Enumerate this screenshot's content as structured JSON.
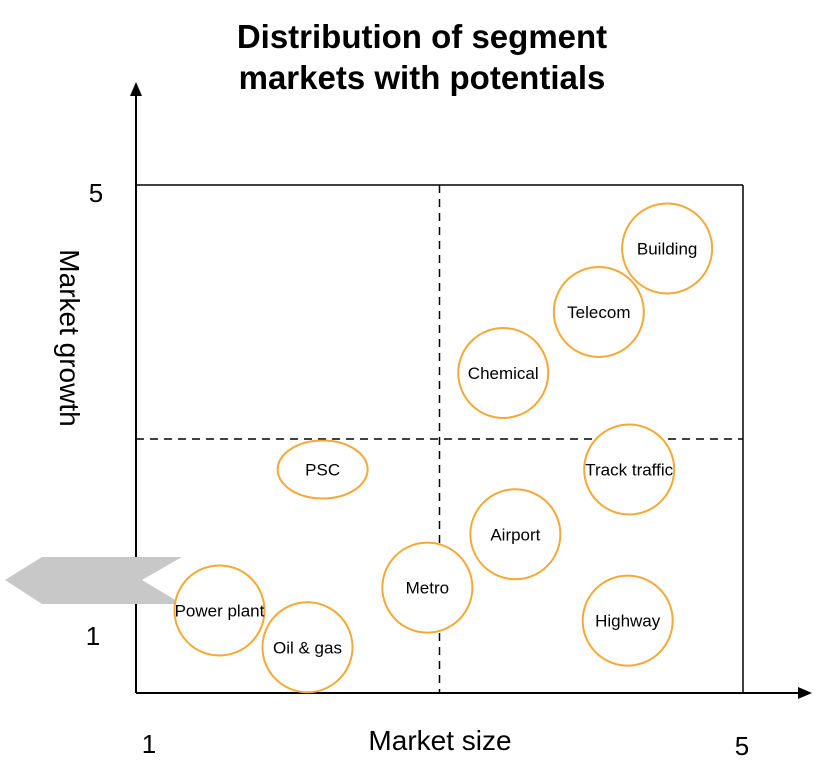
{
  "chart_data": {
    "type": "scatter",
    "title": [
      "Distribution of segment",
      "markets with potentials"
    ],
    "xlabel": "Market size",
    "ylabel": "Market growth",
    "xlim": [
      1,
      5
    ],
    "ylim": [
      1,
      5
    ],
    "x_ticks": [
      "1",
      "5"
    ],
    "y_ticks": [
      "5",
      "1"
    ],
    "quadrant_divider": {
      "x": 3,
      "y": 3
    },
    "colors": {
      "bubble_stroke": "#f4a937",
      "arrow": "#c8c8c8"
    },
    "points": [
      {
        "label": "Building",
        "x": 4.5,
        "y": 4.5
      },
      {
        "label": "Telecom",
        "x": 4.05,
        "y": 4.0
      },
      {
        "label": "Chemical",
        "x": 3.42,
        "y": 3.52
      },
      {
        "label": "PSC",
        "x": 2.23,
        "y": 2.76
      },
      {
        "label": "Track traffic",
        "x": 4.25,
        "y": 2.76
      },
      {
        "label": "Airport",
        "x": 3.5,
        "y": 2.25
      },
      {
        "label": "Metro",
        "x": 2.92,
        "y": 1.83
      },
      {
        "label": "Power plant",
        "x": 1.55,
        "y": 1.65
      },
      {
        "label": "Oil & gas",
        "x": 2.13,
        "y": 1.36
      },
      {
        "label": "Highway",
        "x": 4.24,
        "y": 1.57
      }
    ]
  }
}
